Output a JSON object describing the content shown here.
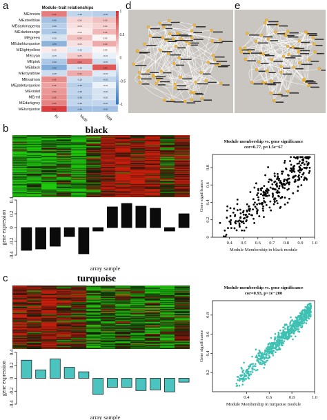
{
  "panel_labels": {
    "a": "a",
    "b": "b",
    "c": "c",
    "d": "d",
    "e": "e"
  },
  "panel_a": {
    "title": "Module–trait relationships",
    "rows": [
      "MEbrown",
      "MEsteelblue",
      "MEdarkmagenta",
      "MEdarkorange",
      "MEgreen",
      "MEdarkturquoise",
      "MElightyellow",
      "MEcyan",
      "MEpink",
      "MEblack",
      "MEroyalblue",
      "MEsalmon",
      "MEpaleturquoise",
      "MEviolet",
      "MEred",
      "MEdarkgrey",
      "MEturquoise"
    ],
    "columns": [
      "IN",
      "NoIR",
      "SIIR"
    ],
    "colorbar_ticks": [
      "1",
      "0.5",
      "0",
      "-0.5",
      "-1"
    ]
  },
  "panel_b": {
    "title": "black",
    "ylabel": "gene expression",
    "yticks": [
      "0.4",
      "0.2",
      "0",
      "-0.2",
      "-0.4"
    ],
    "xlabel": "array sample",
    "scatter_title": "Module membership vs. gene significance",
    "scatter_subtitle": "cor=0.77, p=1.5e−67",
    "scatter_xlabel": "Module Membership in black module",
    "scatter_ylabel": "Gene significance"
  },
  "panel_c": {
    "title": "turquoise",
    "ylabel": "gene expression",
    "yticks": [
      "0.4",
      "0.2",
      "0",
      "-0.2",
      "-0.4"
    ],
    "xlabel": "array sample",
    "scatter_title": "Module membership vs. gene significance",
    "scatter_subtitle": "cor=0.93, p<1e−200",
    "scatter_xlabel": "Module Membership in turquoise module",
    "scatter_ylabel": "Gene significance"
  },
  "chart_data": [
    {
      "type": "heatmap",
      "title": "Module–trait relationships",
      "rows": [
        "MEbrown",
        "MEsteelblue",
        "MEdarkmagenta",
        "MEdarkorange",
        "MEgreen",
        "MEdarkturquoise",
        "MElightyellow",
        "MEcyan",
        "MEpink",
        "MEblack",
        "MEroyalblue",
        "MEsalmon",
        "MEpaleturquoise",
        "MEviolet",
        "MEred",
        "MEdarkgrey",
        "MEturquoise"
      ],
      "columns": [
        "IN",
        "NoIR",
        "SIIR"
      ],
      "values": [
        [
          0.62,
          -0.3,
          -0.35
        ],
        [
          -0.45,
          0.2,
          0.3
        ],
        [
          -0.35,
          0.15,
          0.22
        ],
        [
          -0.4,
          0.1,
          0.35
        ],
        [
          -0.2,
          0.3,
          0.05
        ],
        [
          -0.55,
          0.15,
          0.4
        ],
        [
          0.1,
          -0.15,
          0.05
        ],
        [
          -0.15,
          0.25,
          -0.1
        ],
        [
          -0.4,
          0.65,
          -0.25
        ],
        [
          -0.6,
          -0.2,
          0.8
        ],
        [
          -0.25,
          0.4,
          -0.15
        ],
        [
          0.55,
          -0.25,
          -0.3
        ],
        [
          0.45,
          -0.35,
          -0.1
        ],
        [
          0.5,
          -0.3,
          -0.2
        ],
        [
          0.55,
          -0.35,
          -0.2
        ],
        [
          0.6,
          -0.3,
          -0.3
        ],
        [
          0.92,
          -0.45,
          -0.45
        ]
      ],
      "colorbar_range": [
        -1,
        1
      ]
    },
    {
      "type": "bar",
      "title": "black",
      "ylabel": "gene expression",
      "xlabel": "array sample",
      "ylim": [
        -0.4,
        0.4
      ],
      "values": [
        -0.33,
        -0.31,
        -0.27,
        -0.13,
        -0.38,
        -0.05,
        0.3,
        0.35,
        0.31,
        0.28,
        -0.05,
        0.2
      ]
    },
    {
      "type": "bar",
      "title": "turquoise",
      "ylabel": "gene expression",
      "xlabel": "array sample",
      "ylim": [
        -0.4,
        0.4
      ],
      "values": [
        0.28,
        0.13,
        0.3,
        0.17,
        0.1,
        -0.25,
        -0.14,
        -0.14,
        -0.19,
        -0.18,
        -0.21,
        -0.06
      ]
    },
    {
      "type": "scatter",
      "title": "Module membership vs. gene significance",
      "subtitle": "cor=0.77, p=1.5e−67",
      "xlabel": "Module Membership in black module",
      "ylabel": "Gene significance",
      "xlim": [
        0.28,
        1.0
      ],
      "ylim": [
        0,
        0.95
      ],
      "xticks": [
        0.4,
        0.5,
        0.6,
        0.7,
        0.8,
        0.9,
        1.0
      ],
      "yticks": [
        0,
        0.2,
        0.4,
        0.6,
        0.8
      ],
      "cor": 0.77,
      "n_points": 320,
      "color": "#000000"
    },
    {
      "type": "scatter",
      "title": "Module membership vs. gene significance",
      "subtitle": "cor=0.93, p<1e−200",
      "xlabel": "Module Membership in turquoise module",
      "ylabel": "Gene significance",
      "xlim": [
        0.1,
        1.0
      ],
      "ylim": [
        0,
        0.95
      ],
      "xticks": [
        0.4,
        0.6,
        0.8,
        1.0
      ],
      "yticks": [
        0.2,
        0.4,
        0.6,
        0.8
      ],
      "cor": 0.93,
      "n_points": 700,
      "color": "#3ec1b3"
    }
  ]
}
